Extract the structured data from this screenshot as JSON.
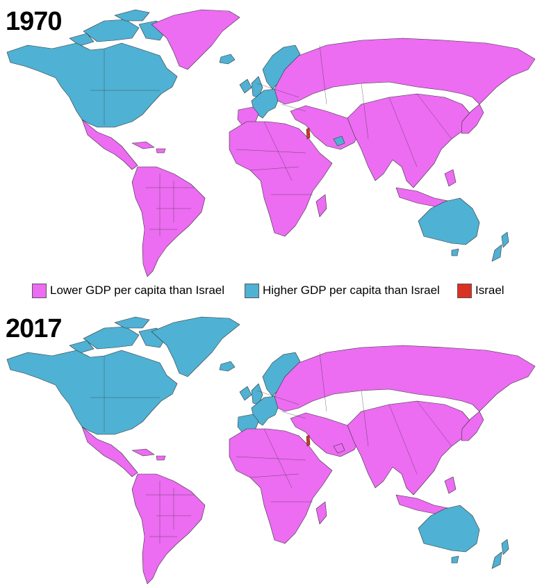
{
  "colors": {
    "lower": "#ec6cf2",
    "higher": "#4fb1d3",
    "israel": "#d93224"
  },
  "legend": {
    "lower_label": "Lower GDP per capita than Israel",
    "higher_label": "Higher GDP per capita than Israel",
    "israel_label": "Israel"
  },
  "maps": [
    {
      "year": "1970",
      "regions": {
        "north_america": "higher",
        "canadian_arctic": "higher",
        "greenland": "lower",
        "central_america": "lower",
        "south_america": "lower",
        "western_europe": "higher",
        "scandinavia": "higher",
        "iceland": "higher",
        "iberia": "lower",
        "eastern_europe_russia": "lower",
        "africa": "lower",
        "middle_east": "lower",
        "gulf_states": "higher",
        "asia": "lower",
        "japan": "lower",
        "australia": "higher",
        "new_zealand": "higher",
        "israel": "israel"
      }
    },
    {
      "year": "2017",
      "regions": {
        "north_america": "higher",
        "canadian_arctic": "higher",
        "greenland": "higher",
        "central_america": "lower",
        "south_america": "lower",
        "western_europe": "higher",
        "scandinavia": "higher",
        "iceland": "higher",
        "iberia": "higher",
        "eastern_europe_russia": "lower",
        "africa": "lower",
        "middle_east": "lower",
        "gulf_states": "lower",
        "asia": "lower",
        "japan": "lower",
        "australia": "higher",
        "new_zealand": "higher",
        "israel": "israel"
      }
    }
  ]
}
